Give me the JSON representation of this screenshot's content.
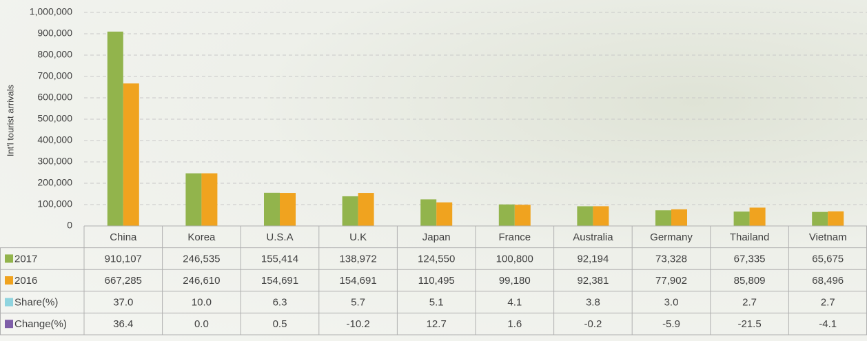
{
  "chart_data": {
    "type": "bar",
    "y_label": "Int'l tourist arrivals",
    "categories": [
      "China",
      "Korea",
      "U.S.A",
      "U.K",
      "Japan",
      "France",
      "Australia",
      "Germany",
      "Thailand",
      "Vietnam"
    ],
    "series": [
      {
        "name": "2017",
        "color": "#92b44c",
        "values": [
          910107,
          246535,
          155414,
          138972,
          124550,
          100800,
          92194,
          73328,
          67335,
          65675
        ],
        "value_labels": [
          "910,107",
          "246,535",
          "155,414",
          "138,972",
          "124,550",
          "100,800",
          "92,194",
          "73,328",
          "67,335",
          "65,675"
        ]
      },
      {
        "name": "2016",
        "color": "#f0a31f",
        "values": [
          667285,
          246610,
          154691,
          154691,
          110495,
          99180,
          92381,
          77902,
          85809,
          68496
        ],
        "value_labels": [
          "667,285",
          "246,610",
          "154,691",
          "154,691",
          "110,495",
          "99,180",
          "92,381",
          "77,902",
          "85,809",
          "68,496"
        ]
      },
      {
        "name": "Share(%)",
        "color": "#8fd4df",
        "values": [
          37.0,
          10.0,
          6.3,
          5.7,
          5.1,
          4.1,
          3.8,
          3.0,
          2.7,
          2.7
        ],
        "value_labels": [
          "37.0",
          "10.0",
          "6.3",
          "5.7",
          "5.1",
          "4.1",
          "3.8",
          "3.0",
          "2.7",
          "2.7"
        ]
      },
      {
        "name": "Change(%)",
        "color": "#7f5fa8",
        "values": [
          36.4,
          0.0,
          0.5,
          -10.2,
          12.7,
          1.6,
          -0.2,
          -5.9,
          -21.5,
          -4.1
        ],
        "value_labels": [
          "36.4",
          "0.0",
          "0.5",
          "-10.2",
          "12.7",
          "1.6",
          "-0.2",
          "-5.9",
          "-21.5",
          "-4.1"
        ]
      }
    ],
    "ylim": [
      0,
      1000000
    ],
    "yticks": [
      0,
      {
        "value": 100000,
        "label": "100,000"
      },
      {
        "value": 200000,
        "label": "200,000"
      },
      {
        "value": 300000,
        "label": "300,000"
      },
      {
        "value": 400000,
        "label": "400,000"
      },
      {
        "value": 500000,
        "label": "500,000"
      },
      {
        "value": 600000,
        "label": "600,000"
      },
      {
        "value": 700000,
        "label": "700,000"
      },
      {
        "value": 800000,
        "label": "800,000"
      },
      {
        "value": 900000,
        "label": "900,000"
      },
      {
        "value": 1000000,
        "label": "1,000,000"
      }
    ],
    "grid": true
  }
}
